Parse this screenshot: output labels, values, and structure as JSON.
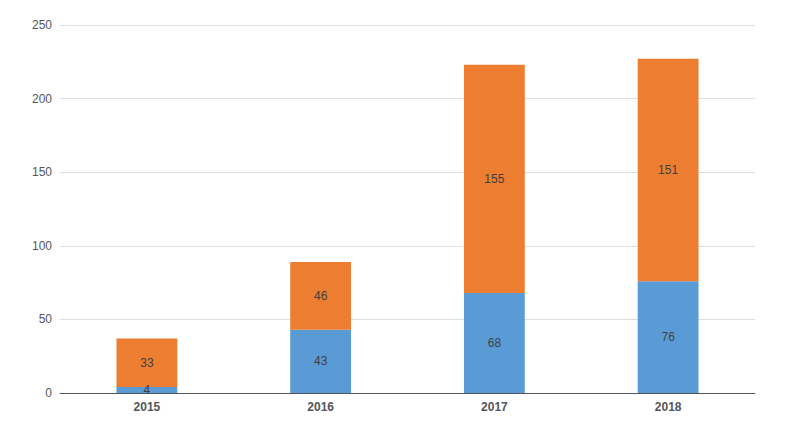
{
  "chart_data": {
    "type": "bar",
    "categories": [
      "2015",
      "2016",
      "2017",
      "2018"
    ],
    "series": [
      {
        "color": "#5b9bd5",
        "values": [
          4,
          43,
          68,
          76
        ]
      },
      {
        "color": "#ed7d31",
        "values": [
          33,
          46,
          155,
          151
        ]
      }
    ],
    "stacked": true,
    "data_labels": true,
    "ylim": [
      0,
      250
    ],
    "yticks": [
      0,
      50,
      100,
      150,
      200,
      250
    ],
    "grid": true
  }
}
